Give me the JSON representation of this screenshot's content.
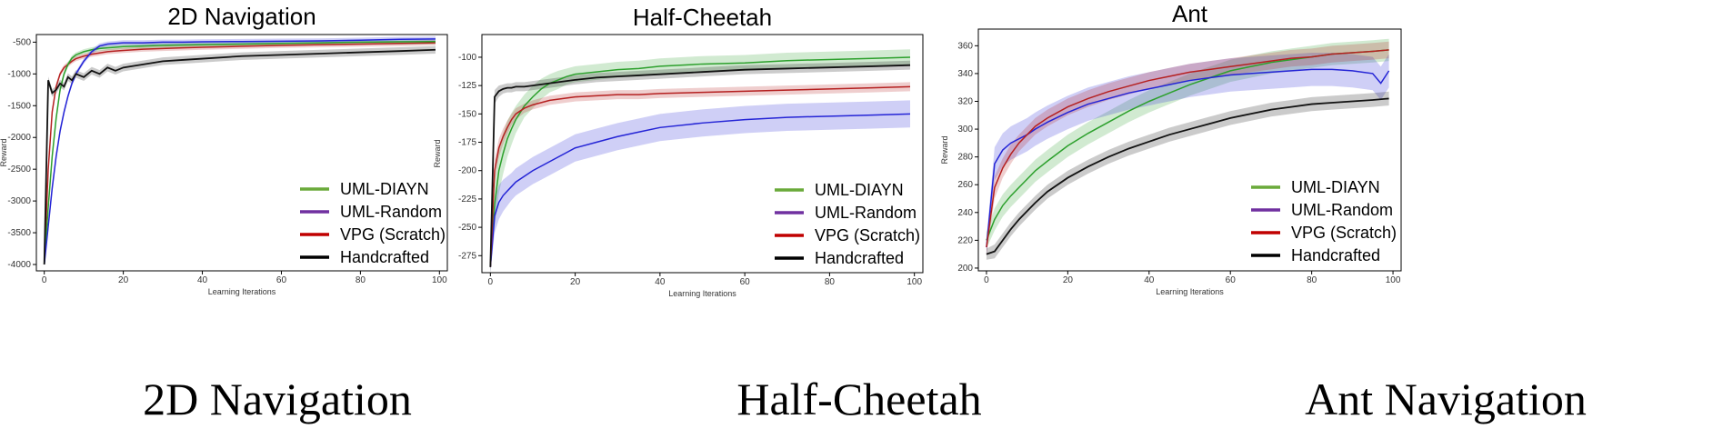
{
  "captions": [
    "2D Navigation",
    "Half-Cheetah",
    "Ant Navigation"
  ],
  "colors": {
    "UML-DIAYN": "#2ca02c",
    "UML-Random": "#2424d6",
    "VPG (Scratch)": "#b52020",
    "Handcrafted": "#111111",
    "legend_UML-DIAYN": "#6aaa3a",
    "legend_UML-Random": "#7030a0",
    "legend_VPG (Scratch)": "#c00000",
    "legend_Handcrafted": "#000000"
  },
  "chart_data": [
    {
      "type": "line",
      "title": "2D Navigation",
      "xlabel": "Learning Iterations",
      "ylabel": "Reward",
      "xlim": [
        -2,
        102
      ],
      "ylim": [
        -4100,
        -380
      ],
      "xticks": [
        0,
        20,
        40,
        60,
        80,
        100
      ],
      "yticks": [
        -4000,
        -3500,
        -3000,
        -2500,
        -2000,
        -1500,
        -1000,
        -500
      ],
      "legend_position": "lower-right",
      "series": [
        {
          "name": "UML-DIAYN",
          "x": [
            0,
            1,
            2,
            3,
            4,
            5,
            6,
            7,
            8,
            10,
            12,
            14,
            16,
            18,
            20,
            25,
            30,
            35,
            40,
            50,
            60,
            70,
            80,
            90,
            99
          ],
          "values": [
            -4000,
            -3100,
            -2300,
            -1700,
            -1250,
            -1000,
            -850,
            -750,
            -700,
            -650,
            -620,
            -600,
            -590,
            -580,
            -570,
            -560,
            -550,
            -545,
            -540,
            -530,
            -520,
            -510,
            -500,
            -495,
            -490
          ],
          "band": [
            20,
            80,
            80,
            70,
            60,
            50,
            40,
            40,
            40,
            40,
            40,
            40,
            40,
            40,
            40,
            40,
            40,
            40,
            40,
            40,
            40,
            40,
            40,
            40,
            40
          ]
        },
        {
          "name": "UML-Random",
          "x": [
            0,
            1,
            2,
            3,
            4,
            5,
            6,
            7,
            8,
            10,
            12,
            14,
            16,
            18,
            20,
            25,
            30,
            35,
            40,
            50,
            60,
            70,
            80,
            90,
            99
          ],
          "values": [
            -4000,
            -3400,
            -2800,
            -2300,
            -1900,
            -1600,
            -1350,
            -1150,
            -1000,
            -800,
            -650,
            -560,
            -530,
            -520,
            -510,
            -510,
            -500,
            -500,
            -495,
            -490,
            -485,
            -480,
            -470,
            -455,
            -450
          ],
          "band": [
            20,
            80,
            80,
            70,
            60,
            50,
            40,
            40,
            40,
            40,
            40,
            40,
            40,
            40,
            40,
            40,
            40,
            40,
            40,
            40,
            40,
            40,
            40,
            40,
            40
          ]
        },
        {
          "name": "VPG (Scratch)",
          "x": [
            0,
            1,
            2,
            3,
            4,
            5,
            6,
            7,
            8,
            10,
            12,
            14,
            16,
            18,
            20,
            25,
            30,
            35,
            40,
            50,
            60,
            70,
            80,
            90,
            99
          ],
          "values": [
            -4000,
            -2500,
            -1600,
            -1200,
            -1000,
            -900,
            -850,
            -800,
            -760,
            -720,
            -690,
            -670,
            -650,
            -640,
            -630,
            -610,
            -600,
            -590,
            -580,
            -565,
            -550,
            -540,
            -530,
            -520,
            -510
          ],
          "band": [
            20,
            60,
            60,
            50,
            40,
            40,
            40,
            40,
            40,
            40,
            40,
            40,
            40,
            40,
            40,
            40,
            40,
            40,
            40,
            40,
            40,
            40,
            40,
            40,
            40
          ]
        },
        {
          "name": "Handcrafted",
          "x": [
            0,
            1,
            2,
            3,
            4,
            5,
            6,
            7,
            8,
            10,
            12,
            14,
            16,
            18,
            20,
            25,
            30,
            35,
            40,
            50,
            60,
            70,
            80,
            90,
            99
          ],
          "values": [
            -4000,
            -1100,
            -1300,
            -1250,
            -1150,
            -1200,
            -1050,
            -1100,
            -1000,
            -1050,
            -950,
            -1000,
            -900,
            -950,
            -900,
            -850,
            -800,
            -780,
            -760,
            -720,
            -700,
            -680,
            -660,
            -640,
            -620
          ],
          "band": [
            20,
            60,
            60,
            60,
            60,
            60,
            60,
            60,
            60,
            60,
            60,
            60,
            60,
            60,
            60,
            60,
            60,
            60,
            60,
            60,
            60,
            60,
            60,
            60,
            60
          ]
        }
      ]
    },
    {
      "type": "line",
      "title": "Half-Cheetah",
      "xlabel": "Learning Iterations",
      "ylabel": "Reward",
      "xlim": [
        -2,
        102
      ],
      "ylim": [
        -290,
        -80
      ],
      "xticks": [
        0,
        20,
        40,
        60,
        80,
        100
      ],
      "yticks": [
        -275,
        -250,
        -225,
        -200,
        -175,
        -150,
        -125,
        -100
      ],
      "legend_position": "lower-right",
      "series": [
        {
          "name": "UML-DIAYN",
          "x": [
            0,
            1,
            2,
            3,
            4,
            5,
            6,
            8,
            10,
            12,
            14,
            16,
            18,
            20,
            25,
            30,
            35,
            40,
            50,
            60,
            70,
            80,
            90,
            99
          ],
          "values": [
            -285,
            -230,
            -200,
            -185,
            -172,
            -163,
            -155,
            -143,
            -135,
            -128,
            -123,
            -120,
            -117,
            -115,
            -113,
            -111,
            -110,
            -108,
            -106,
            -105,
            -103,
            -102,
            -101,
            -100
          ],
          "band": [
            5,
            20,
            20,
            18,
            16,
            14,
            12,
            10,
            10,
            9,
            8,
            8,
            7,
            7,
            7,
            7,
            7,
            7,
            7,
            7,
            7,
            7,
            7,
            7
          ]
        },
        {
          "name": "UML-Random",
          "x": [
            0,
            1,
            2,
            3,
            4,
            5,
            6,
            8,
            10,
            12,
            14,
            16,
            18,
            20,
            25,
            30,
            35,
            40,
            50,
            60,
            70,
            80,
            90,
            99
          ],
          "values": [
            -285,
            -240,
            -228,
            -222,
            -218,
            -214,
            -210,
            -205,
            -200,
            -196,
            -192,
            -188,
            -184,
            -180,
            -175,
            -170,
            -166,
            -162,
            -158,
            -155,
            -153,
            -152,
            -151,
            -150
          ],
          "band": [
            5,
            15,
            15,
            14,
            13,
            12,
            12,
            12,
            12,
            12,
            12,
            12,
            12,
            12,
            12,
            12,
            12,
            12,
            12,
            12,
            12,
            12,
            12,
            12
          ]
        },
        {
          "name": "VPG (Scratch)",
          "x": [
            0,
            1,
            2,
            3,
            4,
            5,
            6,
            8,
            10,
            12,
            14,
            16,
            18,
            20,
            25,
            30,
            35,
            40,
            50,
            60,
            70,
            80,
            90,
            99
          ],
          "values": [
            -285,
            -200,
            -180,
            -170,
            -162,
            -155,
            -150,
            -145,
            -142,
            -140,
            -138,
            -137,
            -136,
            -135,
            -134,
            -133,
            -133,
            -132,
            -131,
            -130,
            -129,
            -128,
            -127,
            -126
          ],
          "band": [
            5,
            10,
            8,
            7,
            6,
            5,
            5,
            4,
            4,
            4,
            4,
            4,
            4,
            4,
            4,
            4,
            4,
            4,
            4,
            4,
            4,
            4,
            4,
            4
          ]
        },
        {
          "name": "Handcrafted",
          "x": [
            0,
            1,
            2,
            3,
            4,
            5,
            6,
            8,
            10,
            12,
            14,
            16,
            18,
            20,
            25,
            30,
            35,
            40,
            50,
            60,
            70,
            80,
            90,
            99
          ],
          "values": [
            -285,
            -135,
            -130,
            -128,
            -127,
            -127,
            -126,
            -126,
            -125,
            -124,
            -123,
            -122,
            -121,
            -120,
            -118,
            -117,
            -116,
            -115,
            -113,
            -111,
            -110,
            -109,
            -108,
            -107
          ],
          "band": [
            5,
            6,
            5,
            4,
            4,
            4,
            4,
            4,
            4,
            4,
            4,
            4,
            4,
            4,
            4,
            4,
            4,
            4,
            4,
            4,
            4,
            4,
            4,
            4
          ]
        }
      ]
    },
    {
      "type": "line",
      "title": "Ant",
      "xlabel": "Learning Iterations",
      "ylabel": "Reward",
      "xlim": [
        -2,
        102
      ],
      "ylim": [
        198,
        372
      ],
      "xticks": [
        0,
        20,
        40,
        60,
        80,
        100
      ],
      "yticks": [
        200,
        220,
        240,
        260,
        280,
        300,
        320,
        340,
        360
      ],
      "legend_position": "lower-right",
      "series": [
        {
          "name": "UML-DIAYN",
          "x": [
            0,
            2,
            4,
            6,
            8,
            10,
            12,
            15,
            20,
            25,
            30,
            35,
            40,
            45,
            50,
            55,
            60,
            65,
            70,
            75,
            80,
            85,
            90,
            95,
            99
          ],
          "values": [
            220,
            235,
            245,
            252,
            258,
            264,
            270,
            277,
            288,
            297,
            305,
            313,
            320,
            326,
            332,
            337,
            342,
            345,
            348,
            350,
            352,
            354,
            355,
            356,
            357
          ],
          "band": [
            6,
            8,
            8,
            8,
            8,
            8,
            8,
            8,
            8,
            8,
            8,
            8,
            8,
            8,
            8,
            8,
            8,
            8,
            8,
            8,
            8,
            8,
            8,
            8,
            8
          ]
        },
        {
          "name": "UML-Random",
          "x": [
            0,
            2,
            4,
            6,
            8,
            10,
            12,
            15,
            20,
            25,
            30,
            35,
            40,
            45,
            50,
            55,
            60,
            65,
            70,
            75,
            80,
            85,
            90,
            95,
            97,
            99
          ],
          "values": [
            215,
            275,
            285,
            290,
            293,
            296,
            300,
            305,
            312,
            318,
            322,
            326,
            329,
            332,
            335,
            337,
            339,
            340,
            341,
            342,
            343,
            343,
            342,
            340,
            333,
            342
          ],
          "band": [
            6,
            12,
            12,
            12,
            12,
            12,
            12,
            12,
            12,
            12,
            12,
            12,
            12,
            12,
            12,
            12,
            12,
            12,
            12,
            12,
            12,
            12,
            12,
            12,
            12,
            12
          ]
        },
        {
          "name": "VPG (Scratch)",
          "x": [
            0,
            2,
            4,
            6,
            8,
            10,
            12,
            15,
            20,
            25,
            30,
            35,
            40,
            45,
            50,
            55,
            60,
            65,
            70,
            75,
            80,
            85,
            90,
            95,
            99
          ],
          "values": [
            215,
            258,
            272,
            282,
            290,
            296,
            302,
            308,
            316,
            322,
            327,
            331,
            335,
            338,
            341,
            343,
            345,
            347,
            349,
            351,
            352,
            354,
            355,
            356,
            357
          ],
          "band": [
            6,
            8,
            7,
            7,
            6,
            6,
            6,
            6,
            6,
            6,
            6,
            6,
            6,
            6,
            6,
            6,
            6,
            6,
            6,
            6,
            6,
            6,
            6,
            6,
            6
          ]
        },
        {
          "name": "Handcrafted",
          "x": [
            0,
            2,
            4,
            6,
            8,
            10,
            12,
            15,
            20,
            25,
            30,
            35,
            40,
            45,
            50,
            55,
            60,
            65,
            70,
            75,
            80,
            85,
            90,
            95,
            99
          ],
          "values": [
            210,
            212,
            220,
            228,
            235,
            241,
            247,
            255,
            265,
            273,
            280,
            286,
            291,
            296,
            300,
            304,
            308,
            311,
            314,
            316,
            318,
            319,
            320,
            321,
            322
          ],
          "band": [
            4,
            5,
            5,
            5,
            5,
            5,
            5,
            5,
            5,
            5,
            5,
            5,
            5,
            5,
            5,
            5,
            5,
            5,
            5,
            5,
            5,
            5,
            5,
            5,
            5
          ]
        }
      ]
    }
  ]
}
